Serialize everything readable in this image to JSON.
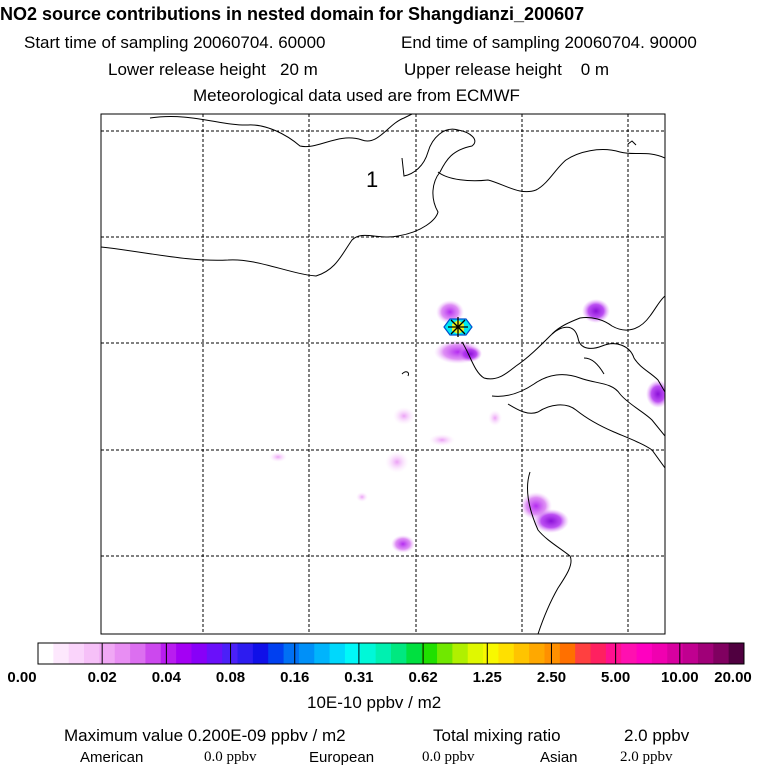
{
  "header": {
    "title": "NO2 source contributions in nested domain for Shangdianzi_200607",
    "start_label": "Start time of sampling 20060704. 60000",
    "end_label": "End time of sampling 20060704. 90000",
    "lower_label": "Lower release height   20 m",
    "upper_label": "Upper release height    0 m",
    "met_label": "Meteorological data used are from ECMWF"
  },
  "map": {
    "region_label": "1",
    "coast_color": "#000000",
    "grid_color": "#000000",
    "station_marker": "station-star-icon"
  },
  "colorbar": {
    "colors": [
      "#ffffff",
      "#fde8fd",
      "#fad4fb",
      "#f6c0f8",
      "#f0a8f5",
      "#e88ef3",
      "#dc6ff0",
      "#cc48ee",
      "#b91cf0",
      "#a400f4",
      "#8800f8",
      "#6a10fa",
      "#4b20f8",
      "#2d1cf0",
      "#1010e8",
      "#0040f0",
      "#0070f4",
      "#0090f8",
      "#00b4fc",
      "#00d8fc",
      "#00f8f8",
      "#00f8d8",
      "#00f0b0",
      "#00e880",
      "#00e040",
      "#20e000",
      "#70e800",
      "#b0f000",
      "#e0f800",
      "#f8f800",
      "#ffe000",
      "#ffc400",
      "#ffa800",
      "#ff9000",
      "#ff7000",
      "#ff4040",
      "#ff2060",
      "#ff1090",
      "#ff10b0",
      "#ff00c0",
      "#f000b0",
      "#d800a0",
      "#c00090",
      "#a00078",
      "#800060",
      "#500040"
    ],
    "labels": [
      "0.00",
      "0.02",
      "0.04",
      "0.08",
      "0.16",
      "0.31",
      "0.62",
      "1.25",
      "2.50",
      "5.00",
      "10.00",
      "20.00"
    ],
    "unit": "10E-10 ppbv / m2"
  },
  "footer": {
    "max_label": "Maximum value  0.200E-09 ppbv / m2",
    "total_label": "Total mixing ratio",
    "total_value": "2.0 ppbv",
    "american_label": "American",
    "american_value": "0.0 ppbv",
    "european_label": "European",
    "european_value": "0.0 ppbv",
    "asian_label": "Asian",
    "asian_value": "2.0 ppbv"
  }
}
